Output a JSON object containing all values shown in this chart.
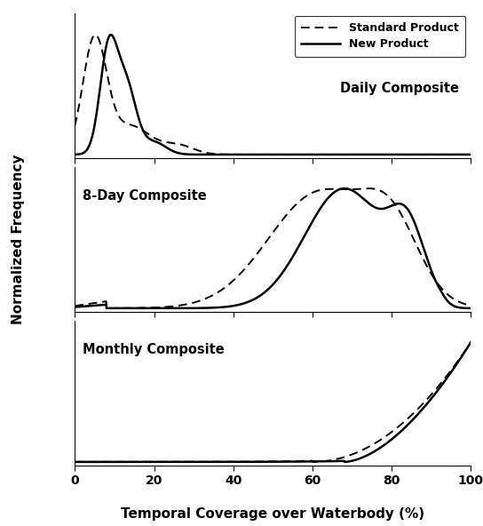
{
  "title": "",
  "xlabel": "Temporal Coverage over Waterbody (%)",
  "ylabel": "Normalized Frequency",
  "legend_labels": [
    "Standard Product",
    "New Product"
  ],
  "panel_labels": [
    "Daily Composite",
    "8-Day Composite",
    "Monthly Composite"
  ],
  "xlim": [
    0,
    100
  ],
  "xticks": [
    0,
    20,
    40,
    60,
    80,
    100
  ],
  "background_color": "#ffffff",
  "line_color": "#000000"
}
